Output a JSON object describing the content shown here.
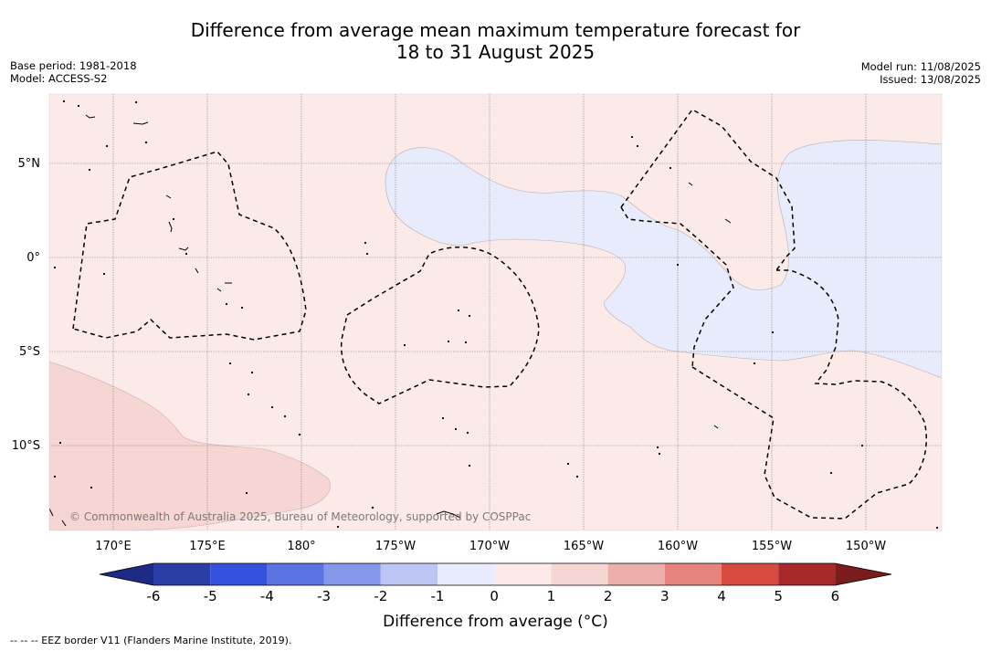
{
  "header": {
    "title_line1": "Difference from average mean maximum temperature forecast for",
    "title_line2": "18 to 31 August 2025",
    "base_period": "Base period: 1981-2018",
    "model": "Model: ACCESS-S2",
    "model_run": "Model run: 11/08/2025",
    "issued": "Issued: 13/08/2025"
  },
  "map": {
    "lat_labels": [
      "5°N",
      "0°",
      "5°S",
      "10°S"
    ],
    "lon_labels": [
      "170°E",
      "175°E",
      "180°",
      "175°W",
      "170°W",
      "165°W",
      "160°W",
      "155°W",
      "150°W"
    ],
    "copyright": "© Commonwealth of Australia 2025, Bureau of Meteorology, supported by COSPPac",
    "background_category": "0 to 1",
    "background_color": "#fbeae8",
    "areas": [
      {
        "category": "-1 to 0",
        "color": "#e7ebfb",
        "region": "equatorial band from about 178°W eastward, widening toward 150°W"
      },
      {
        "category": "1 to 2",
        "color": "#f5d6d3",
        "region": "southwest corner, south of about 6°S near 167°E–179°E"
      }
    ]
  },
  "colorbar": {
    "ticks": [
      "-6",
      "-5",
      "-4",
      "-3",
      "-2",
      "-1",
      "0",
      "1",
      "2",
      "3",
      "4",
      "5",
      "6"
    ],
    "colors": [
      "#2b3ea8",
      "#3452dc",
      "#5a72e2",
      "#8497ea",
      "#bcc5f4",
      "#e7ebfb",
      "#fbeae8",
      "#f5d6d3",
      "#ecaea9",
      "#e5847c",
      "#d74a40",
      "#a7292a"
    ],
    "under_color": "#1d2a86",
    "over_color": "#7a1b1c",
    "label": "Difference from average (°C)"
  },
  "legend": {
    "eez": "--  --  -- EEZ border V11 (Flanders Marine Institute, 2019)."
  }
}
